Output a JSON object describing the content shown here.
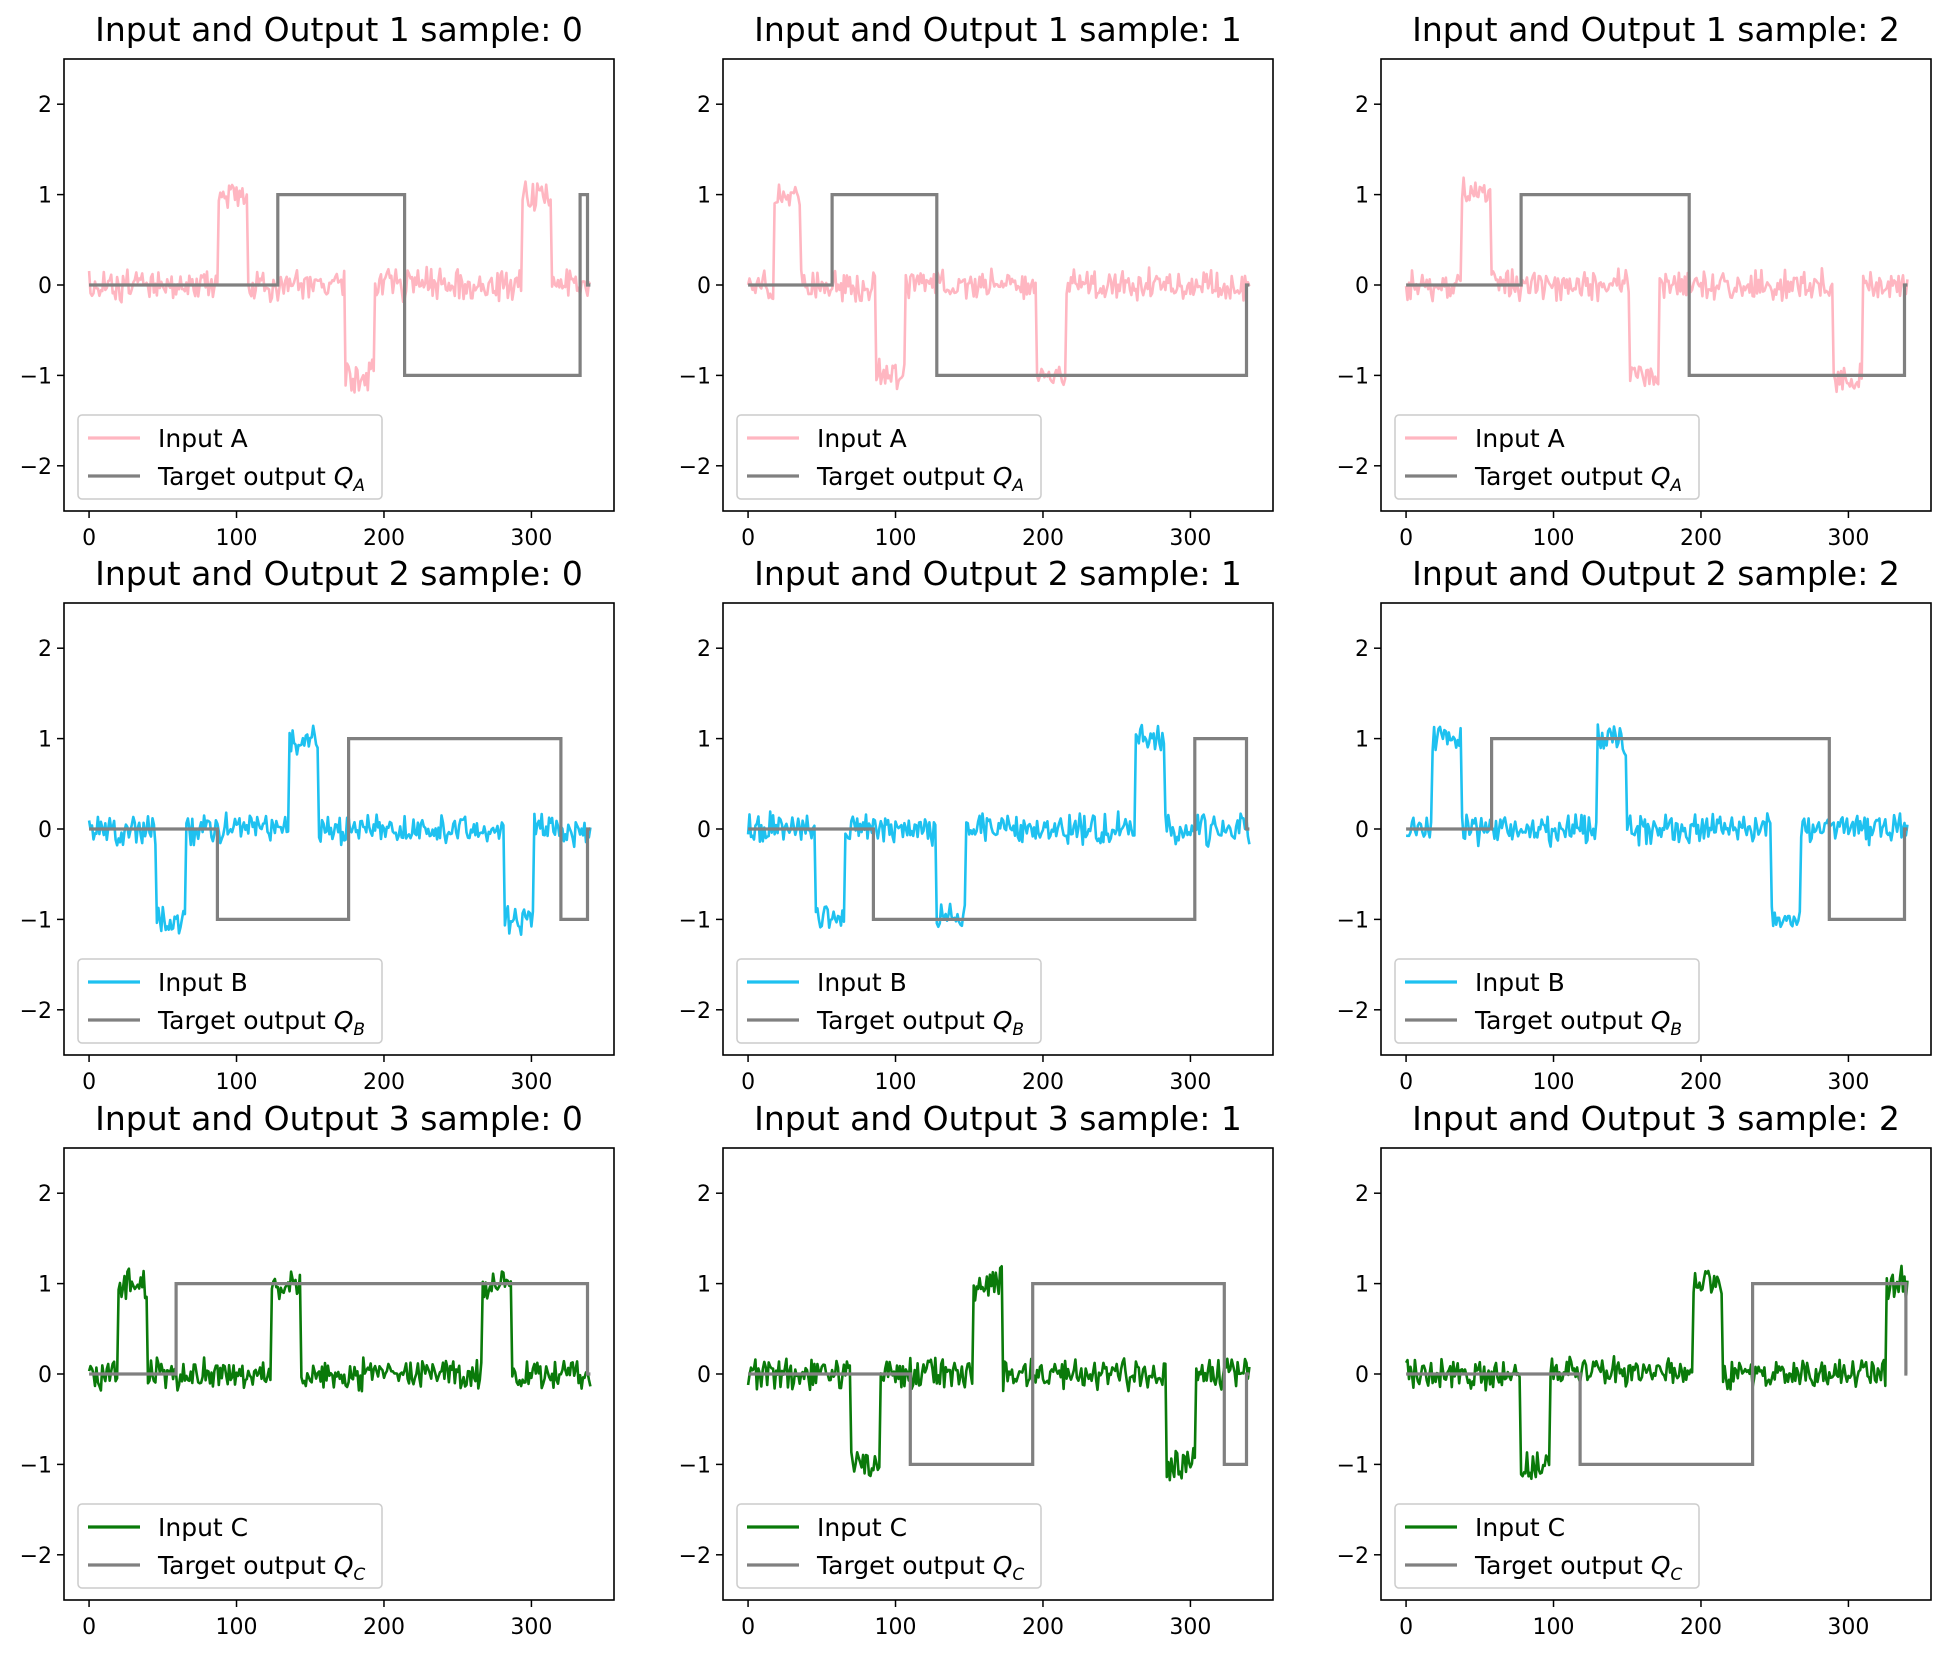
{
  "chart_data": [
    {
      "type": "line",
      "title": "Input and Output 1 sample: 0",
      "xlim": [
        -17,
        356
      ],
      "ylim": [
        -2.5,
        2.5
      ],
      "xticks": [
        0,
        100,
        200,
        300
      ],
      "yticks": [
        -2,
        -1,
        0,
        1,
        2
      ],
      "ytick_labels": [
        "−2",
        "−1",
        "0",
        "1",
        "2"
      ],
      "legend_position": "lower-left",
      "input": {
        "label": "Input A",
        "color": "#ffb6c1",
        "segments": [
          [
            0,
            0
          ],
          [
            88,
            1
          ],
          [
            108,
            0
          ],
          [
            174,
            -1
          ],
          [
            194,
            0
          ],
          [
            294,
            1
          ],
          [
            314,
            0
          ],
          [
            340,
            0
          ]
        ]
      },
      "target": {
        "label": "Target output",
        "math_symbol": "Q",
        "subscript": "A",
        "color": "#808080",
        "steps": [
          [
            0,
            0
          ],
          [
            128,
            1
          ],
          [
            214,
            -1
          ],
          [
            333,
            1
          ],
          [
            338,
            0
          ],
          [
            340,
            0
          ]
        ]
      }
    },
    {
      "type": "line",
      "title": "Input and Output 1 sample: 1",
      "xlim": [
        -17,
        356
      ],
      "ylim": [
        -2.5,
        2.5
      ],
      "xticks": [
        0,
        100,
        200,
        300
      ],
      "yticks": [
        -2,
        -1,
        0,
        1,
        2
      ],
      "ytick_labels": [
        "−2",
        "−1",
        "0",
        "1",
        "2"
      ],
      "legend_position": "lower-left",
      "input": {
        "label": "Input A",
        "color": "#ffb6c1",
        "segments": [
          [
            0,
            0
          ],
          [
            18,
            1
          ],
          [
            36,
            0
          ],
          [
            87,
            -1
          ],
          [
            107,
            0
          ],
          [
            196,
            -1
          ],
          [
            216,
            0
          ],
          [
            340,
            0
          ]
        ]
      },
      "target": {
        "label": "Target output",
        "math_symbol": "Q",
        "subscript": "A",
        "color": "#808080",
        "steps": [
          [
            0,
            0
          ],
          [
            57,
            1
          ],
          [
            128,
            -1
          ],
          [
            338,
            0
          ],
          [
            340,
            0
          ]
        ]
      }
    },
    {
      "type": "line",
      "title": "Input and Output 1 sample: 2",
      "xlim": [
        -17,
        356
      ],
      "ylim": [
        -2.5,
        2.5
      ],
      "xticks": [
        0,
        100,
        200,
        300
      ],
      "yticks": [
        -2,
        -1,
        0,
        1,
        2
      ],
      "ytick_labels": [
        "−2",
        "−1",
        "0",
        "1",
        "2"
      ],
      "legend_position": "lower-left",
      "input": {
        "label": "Input A",
        "color": "#ffb6c1",
        "segments": [
          [
            0,
            0
          ],
          [
            38,
            1
          ],
          [
            58,
            0
          ],
          [
            152,
            -1
          ],
          [
            172,
            0
          ],
          [
            290,
            -1
          ],
          [
            310,
            0
          ],
          [
            340,
            0
          ]
        ]
      },
      "target": {
        "label": "Target output",
        "math_symbol": "Q",
        "subscript": "A",
        "color": "#808080",
        "steps": [
          [
            0,
            0
          ],
          [
            78,
            1
          ],
          [
            192,
            -1
          ],
          [
            338,
            0
          ],
          [
            340,
            0
          ]
        ]
      }
    },
    {
      "type": "line",
      "title": "Input and Output 2 sample: 0",
      "xlim": [
        -17,
        356
      ],
      "ylim": [
        -2.5,
        2.5
      ],
      "xticks": [
        0,
        100,
        200,
        300
      ],
      "yticks": [
        -2,
        -1,
        0,
        1,
        2
      ],
      "ytick_labels": [
        "−2",
        "−1",
        "0",
        "1",
        "2"
      ],
      "legend_position": "lower-left",
      "input": {
        "label": "Input B",
        "color": "#1ec1f0",
        "segments": [
          [
            0,
            0
          ],
          [
            46,
            -1
          ],
          [
            66,
            0
          ],
          [
            136,
            1
          ],
          [
            156,
            0
          ],
          [
            282,
            -1
          ],
          [
            302,
            0
          ],
          [
            340,
            0
          ]
        ]
      },
      "target": {
        "label": "Target output",
        "math_symbol": "Q",
        "subscript": "B",
        "color": "#808080",
        "steps": [
          [
            0,
            0
          ],
          [
            87,
            -1
          ],
          [
            176,
            1
          ],
          [
            320,
            -1
          ],
          [
            338,
            0
          ],
          [
            340,
            0
          ]
        ]
      }
    },
    {
      "type": "line",
      "title": "Input and Output 2 sample: 1",
      "xlim": [
        -17,
        356
      ],
      "ylim": [
        -2.5,
        2.5
      ],
      "xticks": [
        0,
        100,
        200,
        300
      ],
      "yticks": [
        -2,
        -1,
        0,
        1,
        2
      ],
      "ytick_labels": [
        "−2",
        "−1",
        "0",
        "1",
        "2"
      ],
      "legend_position": "lower-left",
      "input": {
        "label": "Input B",
        "color": "#1ec1f0",
        "segments": [
          [
            0,
            0
          ],
          [
            46,
            -1
          ],
          [
            66,
            0
          ],
          [
            128,
            -1
          ],
          [
            148,
            0
          ],
          [
            263,
            1
          ],
          [
            283,
            0
          ],
          [
            340,
            0
          ]
        ]
      },
      "target": {
        "label": "Target output",
        "math_symbol": "Q",
        "subscript": "B",
        "color": "#808080",
        "steps": [
          [
            0,
            0
          ],
          [
            85,
            -1
          ],
          [
            303,
            1
          ],
          [
            338,
            0
          ],
          [
            340,
            0
          ]
        ]
      }
    },
    {
      "type": "line",
      "title": "Input and Output 2 sample: 2",
      "xlim": [
        -17,
        356
      ],
      "ylim": [
        -2.5,
        2.5
      ],
      "xticks": [
        0,
        100,
        200,
        300
      ],
      "yticks": [
        -2,
        -1,
        0,
        1,
        2
      ],
      "ytick_labels": [
        "−2",
        "−1",
        "0",
        "1",
        "2"
      ],
      "legend_position": "lower-left",
      "input": {
        "label": "Input B",
        "color": "#1ec1f0",
        "segments": [
          [
            0,
            0
          ],
          [
            18,
            1
          ],
          [
            38,
            0
          ],
          [
            130,
            1
          ],
          [
            150,
            0
          ],
          [
            248,
            -1
          ],
          [
            268,
            0
          ],
          [
            340,
            0
          ]
        ]
      },
      "target": {
        "label": "Target output",
        "math_symbol": "Q",
        "subscript": "B",
        "color": "#808080",
        "steps": [
          [
            0,
            0
          ],
          [
            58,
            1
          ],
          [
            287,
            -1
          ],
          [
            338,
            0
          ],
          [
            340,
            0
          ]
        ]
      }
    },
    {
      "type": "line",
      "title": "Input and Output 3 sample: 0",
      "xlim": [
        -17,
        356
      ],
      "ylim": [
        -2.5,
        2.5
      ],
      "xticks": [
        0,
        100,
        200,
        300
      ],
      "yticks": [
        -2,
        -1,
        0,
        1,
        2
      ],
      "ytick_labels": [
        "−2",
        "−1",
        "0",
        "1",
        "2"
      ],
      "legend_position": "lower-left",
      "input": {
        "label": "Input C",
        "color": "#0a7a0a",
        "segments": [
          [
            0,
            0
          ],
          [
            20,
            1
          ],
          [
            40,
            0
          ],
          [
            124,
            1
          ],
          [
            144,
            0
          ],
          [
            267,
            1
          ],
          [
            287,
            0
          ],
          [
            340,
            0
          ]
        ]
      },
      "target": {
        "label": "Target output",
        "math_symbol": "Q",
        "subscript": "C",
        "color": "#808080",
        "steps": [
          [
            0,
            0
          ],
          [
            59,
            1
          ],
          [
            338,
            0
          ],
          [
            340,
            0
          ]
        ]
      }
    },
    {
      "type": "line",
      "title": "Input and Output 3 sample: 1",
      "xlim": [
        -17,
        356
      ],
      "ylim": [
        -2.5,
        2.5
      ],
      "xticks": [
        0,
        100,
        200,
        300
      ],
      "yticks": [
        -2,
        -1,
        0,
        1,
        2
      ],
      "ytick_labels": [
        "−2",
        "−1",
        "0",
        "1",
        "2"
      ],
      "legend_position": "lower-left",
      "input": {
        "label": "Input C",
        "color": "#0a7a0a",
        "segments": [
          [
            0,
            0
          ],
          [
            70,
            -1
          ],
          [
            90,
            0
          ],
          [
            153,
            1
          ],
          [
            173,
            0
          ],
          [
            284,
            -1
          ],
          [
            304,
            0
          ],
          [
            340,
            0
          ]
        ]
      },
      "target": {
        "label": "Target output",
        "math_symbol": "Q",
        "subscript": "C",
        "color": "#808080",
        "steps": [
          [
            0,
            0
          ],
          [
            110,
            -1
          ],
          [
            193,
            1
          ],
          [
            323,
            -1
          ],
          [
            338,
            0
          ],
          [
            340,
            0
          ]
        ]
      }
    },
    {
      "type": "line",
      "title": "Input and Output 3 sample: 2",
      "xlim": [
        -17,
        356
      ],
      "ylim": [
        -2.5,
        2.5
      ],
      "xticks": [
        0,
        100,
        200,
        300
      ],
      "yticks": [
        -2,
        -1,
        0,
        1,
        2
      ],
      "ytick_labels": [
        "−2",
        "−1",
        "0",
        "1",
        "2"
      ],
      "legend_position": "lower-left",
      "input": {
        "label": "Input C",
        "color": "#0a7a0a",
        "segments": [
          [
            0,
            0
          ],
          [
            78,
            -1
          ],
          [
            98,
            0
          ],
          [
            195,
            1
          ],
          [
            215,
            0
          ],
          [
            326,
            1
          ],
          [
            338,
            1
          ],
          [
            340,
            1
          ]
        ]
      },
      "target": {
        "label": "Target output",
        "math_symbol": "Q",
        "subscript": "C",
        "color": "#808080",
        "steps": [
          [
            0,
            0
          ],
          [
            118,
            -1
          ],
          [
            235,
            1
          ],
          [
            339,
            0
          ],
          [
            340,
            0
          ]
        ]
      }
    }
  ]
}
